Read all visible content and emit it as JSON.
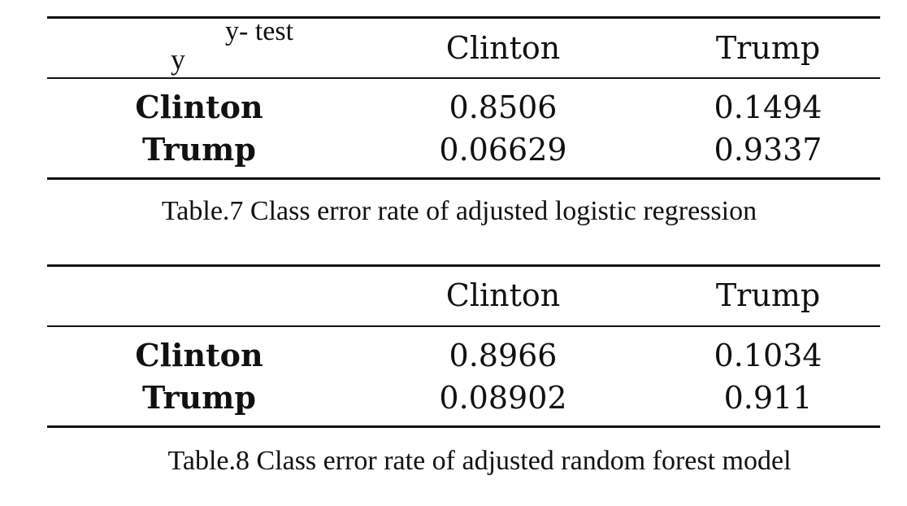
{
  "table7": {
    "corner_top": "y- test",
    "corner_bottom": "y",
    "columns": [
      "Clinton",
      "Trump"
    ],
    "rows": [
      {
        "label": "Clinton",
        "values": [
          "0.8506",
          "0.1494"
        ]
      },
      {
        "label": "Trump",
        "values": [
          "0.06629",
          "0.9337"
        ]
      }
    ],
    "caption": "Table.7 Class error rate of adjusted logistic regression"
  },
  "table8": {
    "columns": [
      "Clinton",
      "Trump"
    ],
    "rows": [
      {
        "label": "Clinton",
        "values": [
          "0.8966",
          "0.1034"
        ]
      },
      {
        "label": "Trump",
        "values": [
          "0.08902",
          "0.911"
        ]
      }
    ],
    "caption": "Table.8 Class error rate of adjusted random forest model"
  }
}
